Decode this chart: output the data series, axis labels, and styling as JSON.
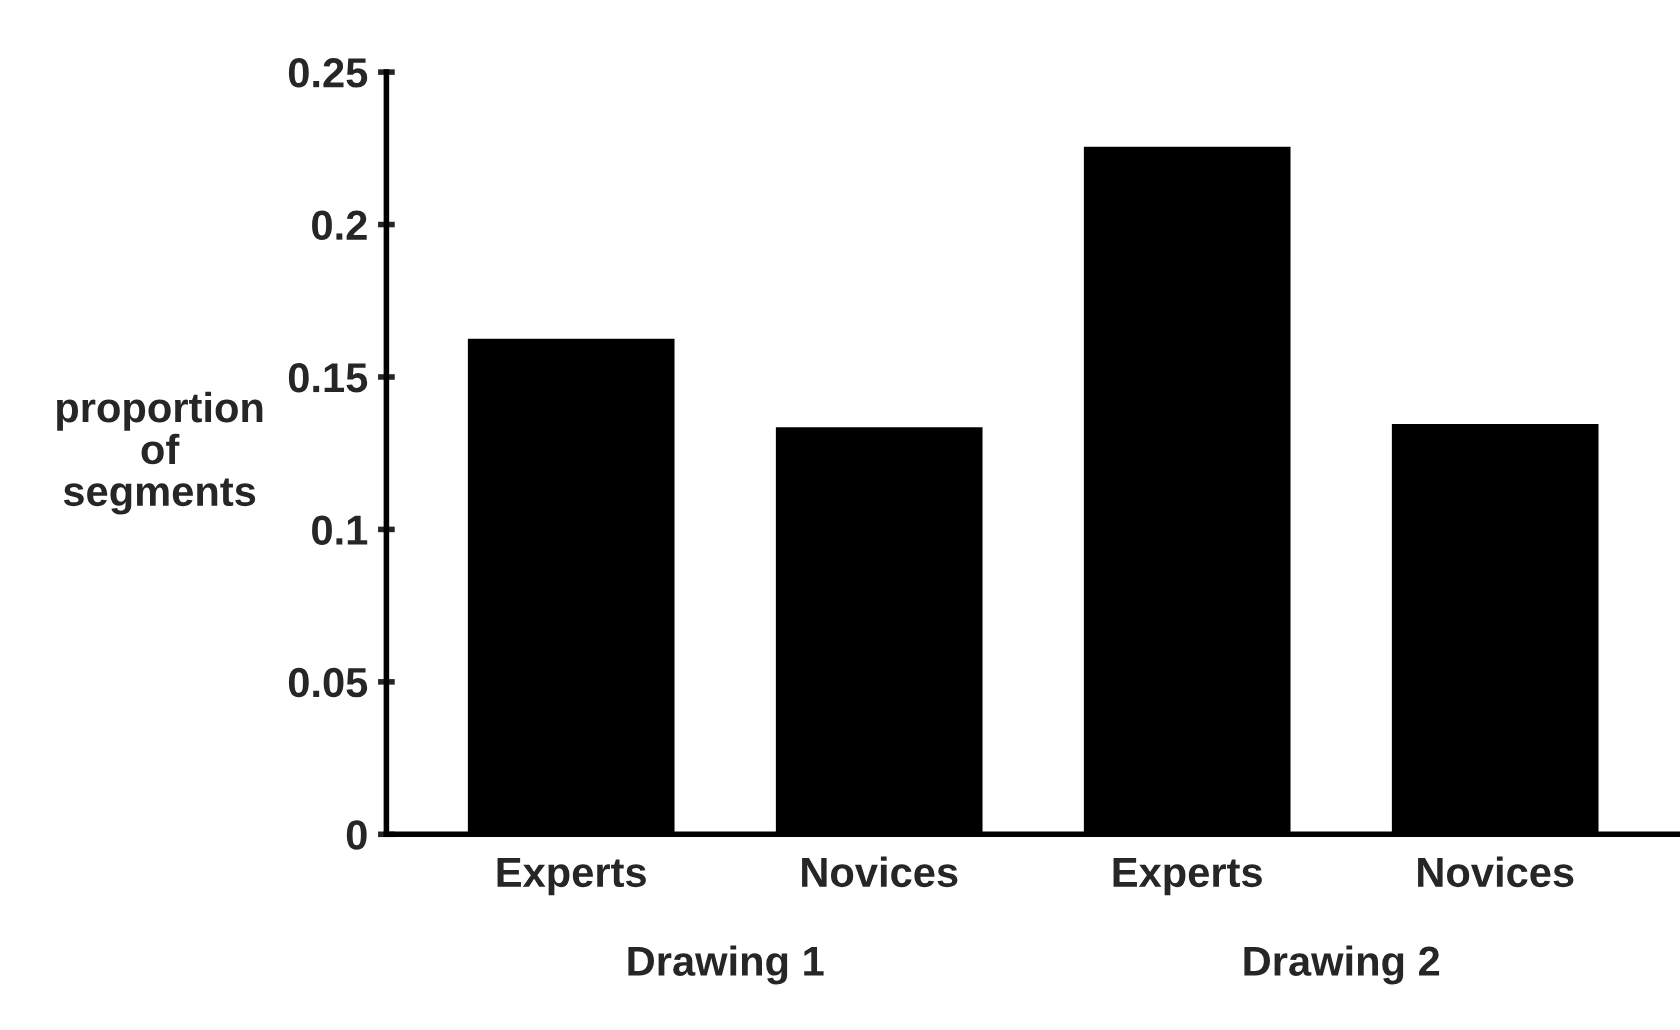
{
  "chart_data": {
    "type": "bar",
    "categories": [
      "Experts",
      "Novices",
      "Experts",
      "Novices"
    ],
    "values": [
      0.163,
      0.134,
      0.226,
      0.135
    ],
    "color": "#000000",
    "ylabel": "proportion\nof\nsegments",
    "ylim": [
      0,
      0.25
    ],
    "yticks": [
      0,
      0.05,
      0.1,
      0.15,
      0.2,
      0.25
    ],
    "annotations": [
      "Drawing 1",
      "Drawing 2"
    ],
    "grid": false,
    "legend": false
  }
}
